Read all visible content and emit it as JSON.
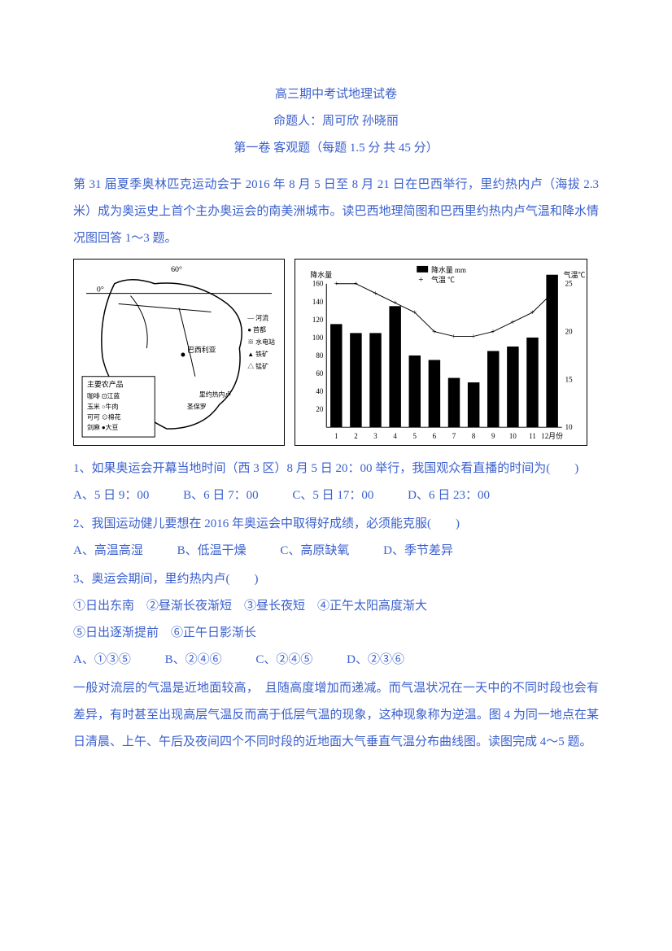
{
  "title": "高三期中考试地理试卷",
  "subtitle": "命题人：周可欣 孙晓丽",
  "section": "第一卷 客观题（每题 1.5 分 共 45 分）",
  "passage1": "第 31 届夏季奥林匹克运动会于 2016 年 8 月 5 日至 8 月 21 日在巴西举行，里约热内卢（海拔 2.3 米）成为奥运史上首个主办奥运会的南美洲城市。读巴西地理简图和巴西里约热内卢气温和降水情况图回答 1～3 题。",
  "chart": {
    "type": "bar_line_combo",
    "months": [
      "1",
      "2",
      "3",
      "4",
      "5",
      "6",
      "7",
      "8",
      "9",
      "10",
      "11",
      "12月份"
    ],
    "precip_values": [
      115,
      105,
      105,
      135,
      80,
      75,
      55,
      50,
      85,
      90,
      100,
      170
    ],
    "precip_label": "降水量 mm",
    "temp_label": "气温 ℃",
    "y_left_label": "降水量",
    "y_right_label": "气温℃",
    "y_left_max": 160,
    "y_left_step": 20,
    "y_right_max": 25,
    "y_right_min": 10,
    "temp_values": [
      25,
      25,
      24,
      23,
      22,
      20,
      19.5,
      19.5,
      20,
      21,
      22,
      24
    ],
    "bar_color": "#000000",
    "line_color": "#000000",
    "bg_color": "#ffffff",
    "fontsize": 9
  },
  "map": {
    "label_equator": "0°",
    "label_60w": "60°",
    "legend_title": "主要农产品",
    "legend_items_left": [
      "咖啡 ⊡江蓝",
      "玉米 ○牛肉",
      "可可 ⊙棉花",
      "剑麻 ●大豆"
    ],
    "side_legend": [
      "— 河流",
      "● 首都",
      "※ 水电站",
      "▲ 铁矿",
      "△ 锰矿"
    ],
    "city_labels": [
      "巴西利亚",
      "里约热内卢",
      "圣保罗",
      "贝洛奥里藏特"
    ]
  },
  "q1": {
    "stem": "1、如果奥运会开幕当地时间（西 3 区）8 月 5 日 20：00 举行，我国观众看直播的时间为(　　)",
    "A": "A、5 日 9：00",
    "B": "B、6 日 7：00",
    "C": "C、5 日 17：00",
    "D": "D、6 日 23：00"
  },
  "q2": {
    "stem": "2、我国运动健儿要想在 2016 年奥运会中取得好成绩，必须能克服(　　)",
    "A": "A、高温高湿",
    "B": "B、低温干燥",
    "C": "C、高原缺氧",
    "D": "D、季节差异"
  },
  "q3": {
    "stem": "3、奥运会期间，里约热内卢(　　)",
    "line1": "①日出东南　②昼渐长夜渐短　③昼长夜短　④正午太阳高度渐大",
    "line2": "⑤日出逐渐提前　⑥正午日影渐长",
    "A": "A、①③⑤",
    "B": "B、②④⑥",
    "C": "C、②④⑤",
    "D": "D、②③⑥"
  },
  "passage2": "一般对流层的气温是近地面较高，　且随高度增加而递减。而气温状况在一天中的不同时段也会有差异，有时甚至出现高层气温反而高于低层气温的现象，这种现象称为逆温。图 4 为同一地点在某日清晨、上午、午后及夜间四个不同时段的近地面大气垂直气温分布曲线图。读图完成 4～5 题。"
}
